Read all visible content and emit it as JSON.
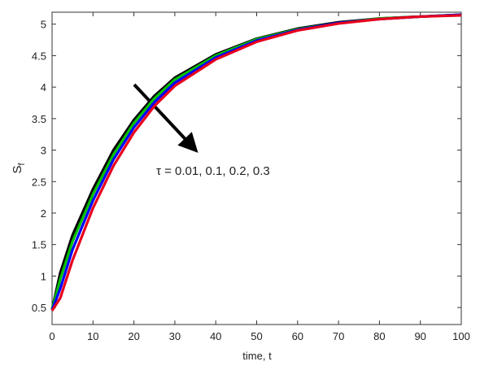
{
  "chart_data": {
    "type": "line",
    "xlabel": "time, t",
    "ylabel": "S",
    "ylabel_sub": "f",
    "annotation": "τ =  0.01, 0.1, 0.2, 0.3",
    "x": [
      0,
      2,
      5,
      10,
      15,
      20,
      25,
      30,
      40,
      50,
      60,
      70,
      80,
      90,
      100
    ],
    "series": [
      {
        "color": "#000000",
        "values": [
          0.47,
          1.05,
          1.65,
          2.38,
          3.0,
          3.48,
          3.86,
          4.15,
          4.52,
          4.77,
          4.93,
          5.03,
          5.09,
          5.12,
          5.15
        ]
      },
      {
        "color": "#00c000",
        "values": [
          0.47,
          0.95,
          1.55,
          2.3,
          2.93,
          3.43,
          3.82,
          4.12,
          4.5,
          4.76,
          4.92,
          5.02,
          5.09,
          5.12,
          5.15
        ]
      },
      {
        "color": "#0000ff",
        "values": [
          0.46,
          0.8,
          1.42,
          2.2,
          2.85,
          3.36,
          3.76,
          4.07,
          4.47,
          4.74,
          4.91,
          5.02,
          5.08,
          5.12,
          5.15
        ]
      },
      {
        "color": "#e8001c",
        "values": [
          0.45,
          0.65,
          1.25,
          2.08,
          2.75,
          3.28,
          3.7,
          4.02,
          4.44,
          4.72,
          4.9,
          5.01,
          5.08,
          5.12,
          5.14
        ]
      }
    ],
    "xlim": [
      0,
      100
    ],
    "xticks": [
      0,
      10,
      20,
      30,
      40,
      50,
      60,
      70,
      80,
      90,
      100
    ],
    "ylim": [
      0.23,
      5.19
    ],
    "yticks": [
      0.5,
      1,
      1.5,
      2,
      2.5,
      3,
      3.5,
      4,
      4.5,
      5
    ]
  }
}
